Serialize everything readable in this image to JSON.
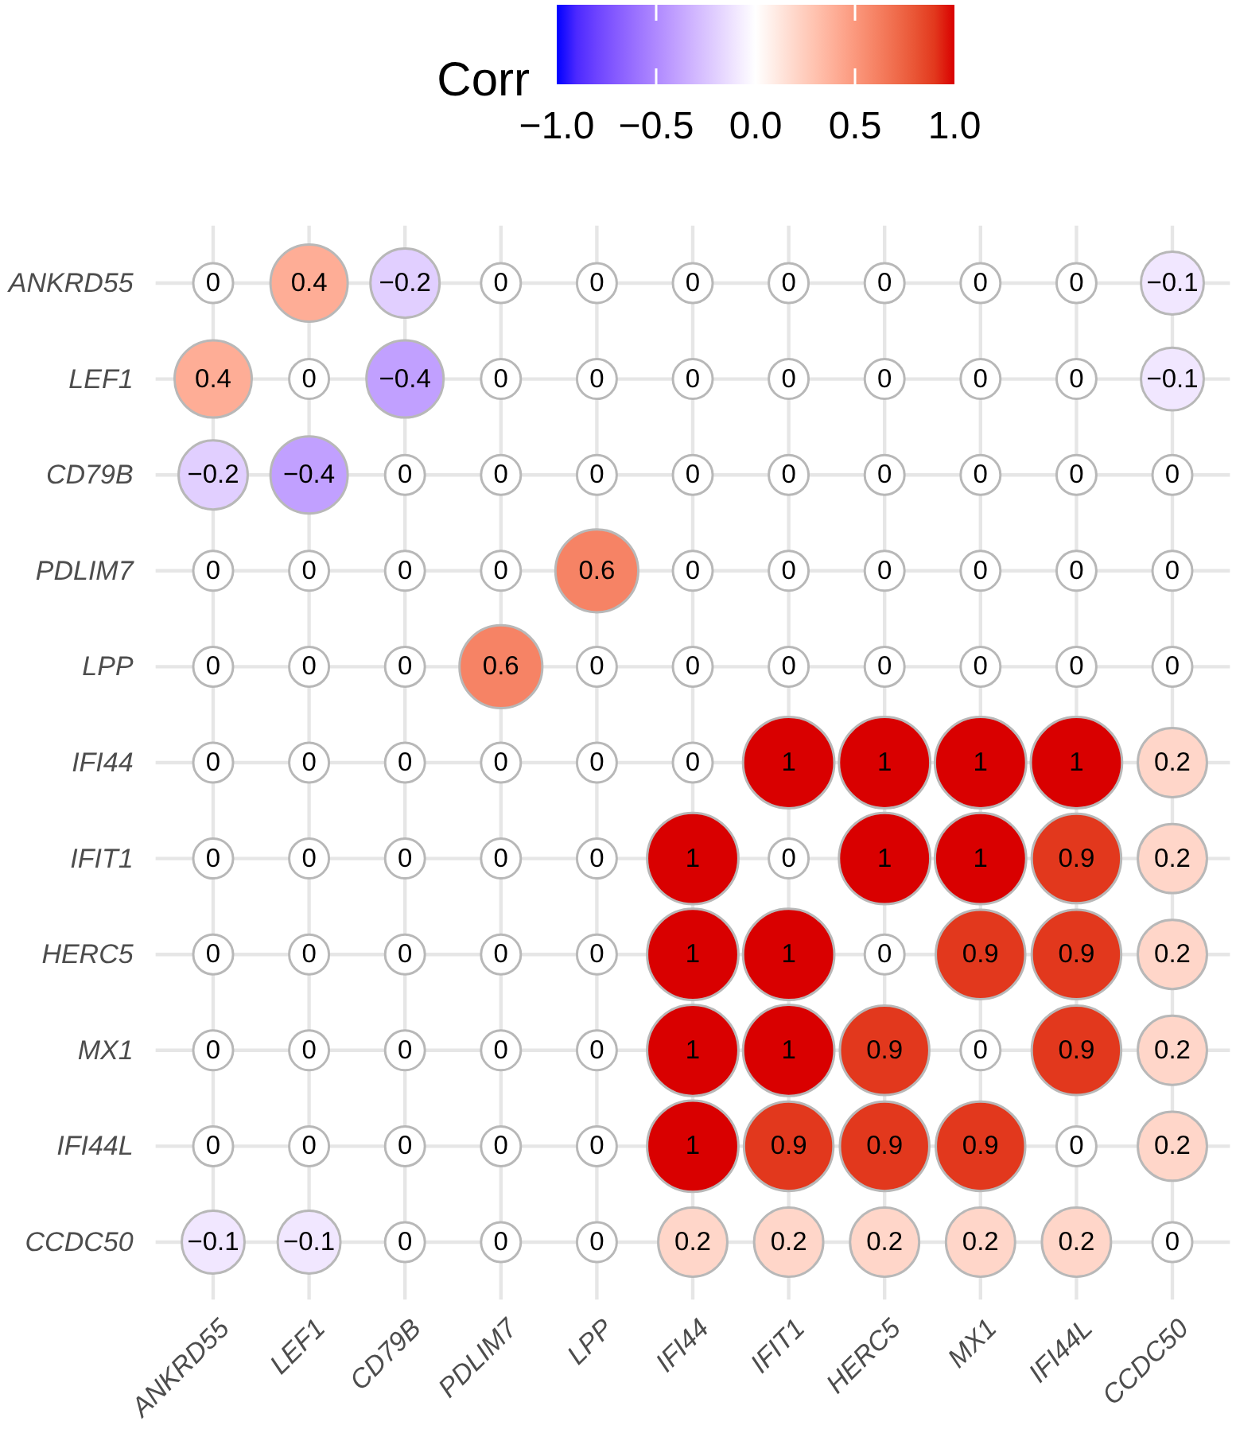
{
  "chart_data": {
    "type": "heatmap",
    "categories": [
      "ANKRD55",
      "LEF1",
      "CD79B",
      "PDLIM7",
      "LPP",
      "IFI44",
      "IFIT1",
      "HERC5",
      "MX1",
      "IFI44L",
      "CCDC50"
    ],
    "y_categories": [
      "ANKRD55",
      "LEF1",
      "CD79B",
      "PDLIM7",
      "LPP",
      "IFI44",
      "IFIT1",
      "HERC5",
      "MX1",
      "IFI44L",
      "CCDC50"
    ],
    "cells": [
      [
        0,
        0.4,
        -0.2,
        0,
        0,
        0,
        0,
        0,
        0,
        0,
        -0.1
      ],
      [
        0.4,
        0,
        -0.4,
        0,
        0,
        0,
        0,
        0,
        0,
        0,
        -0.1
      ],
      [
        -0.2,
        -0.4,
        0,
        0,
        0,
        0,
        0,
        0,
        0,
        0,
        0
      ],
      [
        0,
        0,
        0,
        0,
        0.6,
        0,
        0,
        0,
        0,
        0,
        0
      ],
      [
        0,
        0,
        0,
        0.6,
        0,
        0,
        0,
        0,
        0,
        0,
        0
      ],
      [
        0,
        0,
        0,
        0,
        0,
        0,
        1,
        1,
        1,
        1,
        0.2
      ],
      [
        0,
        0,
        0,
        0,
        0,
        1,
        0,
        1,
        1,
        0.9,
        0.2
      ],
      [
        0,
        0,
        0,
        0,
        0,
        1,
        1,
        0,
        0.9,
        0.9,
        0.2
      ],
      [
        0,
        0,
        0,
        0,
        0,
        1,
        1,
        0.9,
        0,
        0.9,
        0.2
      ],
      [
        0,
        0,
        0,
        0,
        0,
        1,
        0.9,
        0.9,
        0.9,
        0,
        0.2
      ],
      [
        -0.1,
        -0.1,
        0,
        0,
        0,
        0.2,
        0.2,
        0.2,
        0.2,
        0.2,
        0
      ]
    ],
    "clim": [
      -1,
      1
    ],
    "cticks": [
      {
        "value": -1,
        "label": "−1.0"
      },
      {
        "value": -0.5,
        "label": "−0.5"
      },
      {
        "value": 0,
        "label": "0.0"
      },
      {
        "value": 0.5,
        "label": "0.5"
      },
      {
        "value": 1,
        "label": "1.0"
      }
    ],
    "clabel": "Corr",
    "data_labels": true,
    "grid": true
  }
}
